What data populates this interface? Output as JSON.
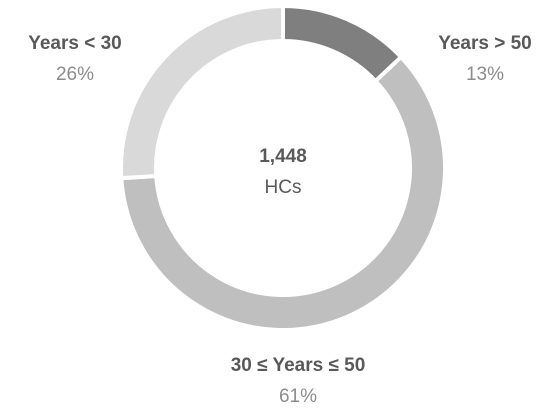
{
  "chart_data": {
    "type": "donut",
    "categories": [
      "Years > 50",
      "30 ≤ Years ≤ 50",
      "Years < 30"
    ],
    "values": [
      13,
      61,
      26
    ],
    "value_labels": [
      "13%",
      "61%",
      "26%"
    ],
    "colors": [
      "#7f7f7f",
      "#bfbfbf",
      "#d9d9d9"
    ],
    "center_value": "1,448",
    "center_label": "HCs"
  }
}
